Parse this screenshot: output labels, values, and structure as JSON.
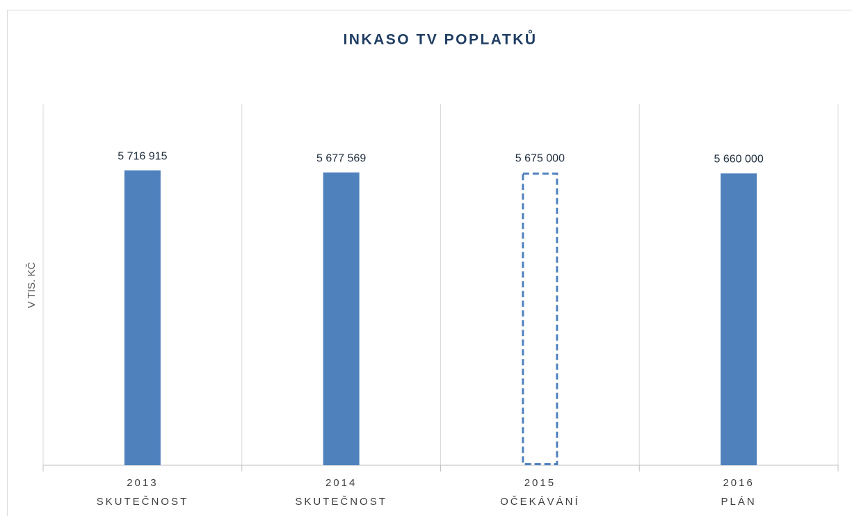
{
  "chart_data": {
    "type": "bar",
    "title": "INKASO TV POPLATKŮ",
    "y_label": "V TIS. KČ",
    "categories": [
      [
        "2013",
        "SKUTEČNOST"
      ],
      [
        "2014",
        "SKUTEČNOST"
      ],
      [
        "2015",
        "OČEKÁVÁNÍ"
      ],
      [
        "2016",
        "PLÁN"
      ]
    ],
    "values": [
      5716915,
      5677569,
      5675000,
      5660000
    ],
    "value_labels": [
      "5 716 915",
      "5 677 569",
      "5 675 000",
      "5 660 000"
    ],
    "bar_styles": [
      "solid",
      "solid",
      "dashed",
      "solid"
    ],
    "color": "#4f81bd",
    "ylim": [
      0,
      7000000
    ]
  }
}
